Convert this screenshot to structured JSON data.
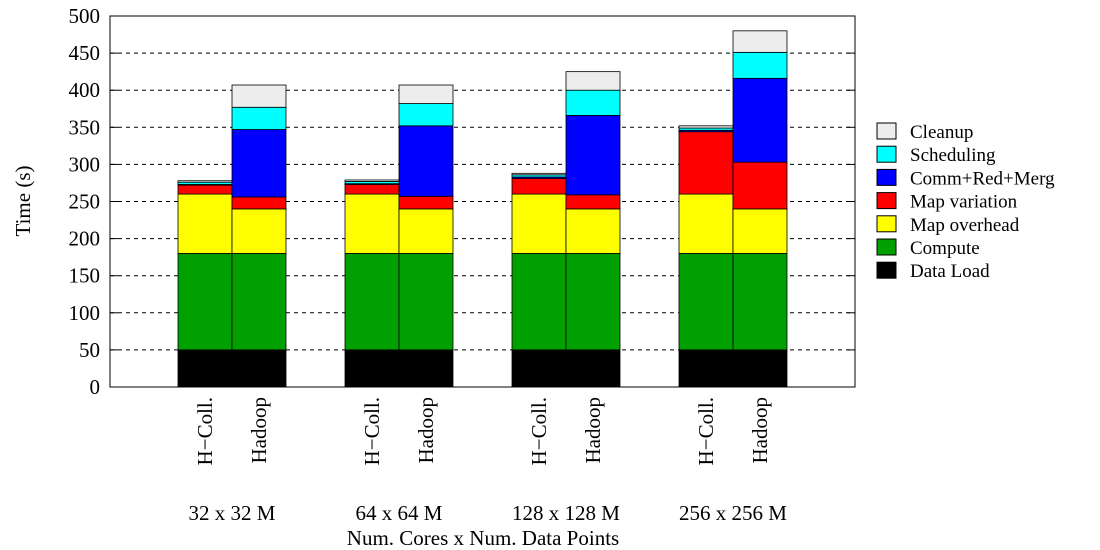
{
  "chart_data": {
    "type": "bar",
    "stacked": true,
    "ylabel": "Time (s)",
    "xlabel": "Num. Cores x Num. Data Points",
    "ylim": [
      0,
      500
    ],
    "yticks": [
      0,
      50,
      100,
      150,
      200,
      250,
      300,
      350,
      400,
      450,
      500
    ],
    "grid": "horizontal dashed",
    "legend_position": "right",
    "groups": [
      "32 x 32 M",
      "64 x 64 M",
      "128 x 128 M",
      "256 x 256 M"
    ],
    "bars_per_group": [
      "H−Coll.",
      "Hadoop"
    ],
    "colors": {
      "Data Load": "#000000",
      "Compute": "#00a000",
      "Map overhead": "#ffff00",
      "Map variation": "#ff0000",
      "Comm+Red+Merg": "#0000ff",
      "Scheduling": "#00ffff",
      "Cleanup": "#ededed"
    },
    "series": [
      {
        "name": "Data Load",
        "values": [
          [
            50,
            50
          ],
          [
            50,
            50
          ],
          [
            50,
            50
          ],
          [
            50,
            50
          ]
        ]
      },
      {
        "name": "Compute",
        "values": [
          [
            130,
            130
          ],
          [
            130,
            130
          ],
          [
            130,
            130
          ],
          [
            130,
            130
          ]
        ]
      },
      {
        "name": "Map overhead",
        "values": [
          [
            80,
            60
          ],
          [
            80,
            60
          ],
          [
            80,
            60
          ],
          [
            80,
            60
          ]
        ]
      },
      {
        "name": "Map variation",
        "values": [
          [
            12,
            16
          ],
          [
            13,
            17
          ],
          [
            21,
            19
          ],
          [
            84,
            63
          ]
        ]
      },
      {
        "name": "Comm+Red+Merg",
        "values": [
          [
            1,
            91
          ],
          [
            1,
            95
          ],
          [
            2,
            107
          ],
          [
            2,
            113
          ]
        ]
      },
      {
        "name": "Scheduling",
        "values": [
          [
            3,
            30
          ],
          [
            3,
            30
          ],
          [
            3,
            34
          ],
          [
            3,
            35
          ]
        ]
      },
      {
        "name": "Cleanup",
        "values": [
          [
            2,
            30
          ],
          [
            2,
            25
          ],
          [
            2,
            25
          ],
          [
            3,
            29
          ]
        ]
      }
    ]
  }
}
